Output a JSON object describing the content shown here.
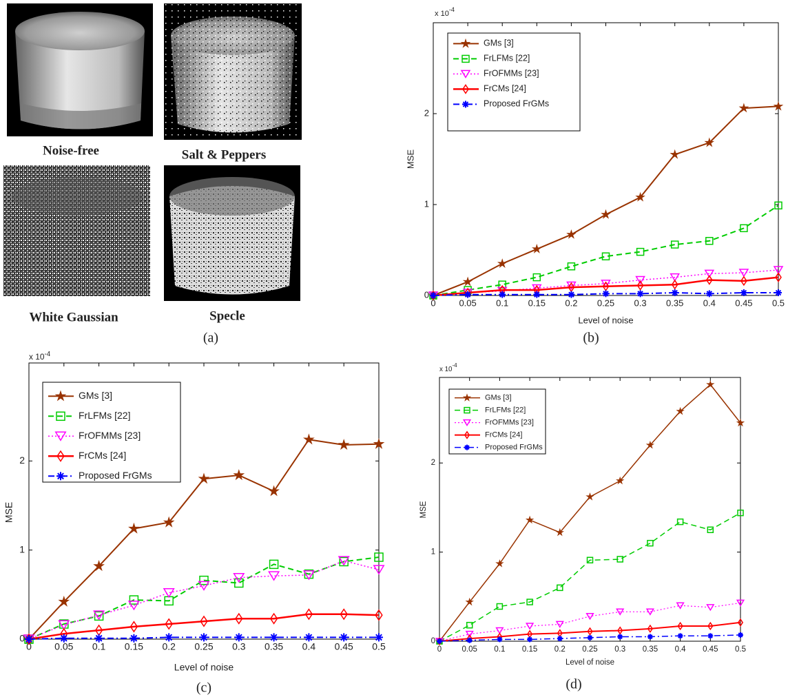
{
  "panel_a": {
    "labels": [
      "Noise-free",
      "Salt & Peppers",
      "White Gaussian",
      "Specle"
    ],
    "caption": "(a)"
  },
  "chart_data": [
    {
      "type": "line",
      "caption": "(b)",
      "x_label": "Level of noise",
      "y_label": "MSE",
      "multiplier": "x 10",
      "multiplier_exp": "-4",
      "x": [
        0,
        0.05,
        0.1,
        0.15,
        0.2,
        0.25,
        0.3,
        0.35,
        0.4,
        0.45,
        0.5
      ],
      "xlim": [
        0,
        0.5
      ],
      "xticks": [
        0,
        0.05,
        0.1,
        0.15,
        0.2,
        0.25,
        0.3,
        0.35,
        0.4,
        0.45,
        0.5
      ],
      "ylim": [
        0,
        3
      ],
      "yticks": [
        0,
        1,
        2
      ],
      "legend": "upper left",
      "series": [
        {
          "name": "GMs [3]",
          "color": "#993300",
          "marker": "star",
          "line_style": "solid",
          "line_width": 2,
          "values": [
            0,
            0.15,
            0.35,
            0.51,
            0.67,
            0.89,
            1.08,
            1.55,
            1.68,
            2.06,
            2.08
          ]
        },
        {
          "name": "FrLFMs [22]",
          "color": "#00cc00",
          "marker": "square",
          "line_style": "dashed",
          "line_width": 2,
          "values": [
            0,
            0.06,
            0.12,
            0.2,
            0.32,
            0.43,
            0.48,
            0.56,
            0.6,
            0.74,
            0.99
          ]
        },
        {
          "name": "FrOFMMs [23]",
          "color": "#ff00ff",
          "marker": "triangle-down",
          "line_style": "dotted",
          "line_width": 1.5,
          "values": [
            0,
            0.03,
            0.05,
            0.08,
            0.11,
            0.13,
            0.17,
            0.2,
            0.24,
            0.25,
            0.28
          ]
        },
        {
          "name": "FrCMs [24]",
          "color": "#ff0000",
          "marker": "diamond",
          "line_style": "solid",
          "line_width": 2.5,
          "values": [
            0,
            0.03,
            0.06,
            0.06,
            0.09,
            0.1,
            0.11,
            0.12,
            0.17,
            0.16,
            0.2
          ]
        },
        {
          "name": "Proposed FrGMs",
          "color": "#0000ff",
          "marker": "asterisk",
          "line_style": "dashdot",
          "line_width": 2,
          "values": [
            0,
            0.01,
            0.01,
            0.01,
            0.01,
            0.02,
            0.02,
            0.03,
            0.02,
            0.03,
            0.03
          ]
        }
      ]
    },
    {
      "type": "line",
      "caption": "(c)",
      "x_label": "Level of noise",
      "y_label": "MSE",
      "multiplier": "x 10",
      "multiplier_exp": "-4",
      "x": [
        0,
        0.05,
        0.1,
        0.15,
        0.2,
        0.25,
        0.3,
        0.35,
        0.4,
        0.45,
        0.5
      ],
      "xlim": [
        0,
        0.5
      ],
      "xticks": [
        0,
        0.05,
        0.1,
        0.15,
        0.2,
        0.25,
        0.3,
        0.35,
        0.4,
        0.45,
        0.5
      ],
      "ylim": [
        0,
        3.1
      ],
      "yticks": [
        0,
        1,
        2
      ],
      "legend": "upper left",
      "series": [
        {
          "name": "GMs [3]",
          "color": "#993300",
          "marker": "star",
          "line_style": "solid",
          "line_width": 2,
          "values": [
            0,
            0.42,
            0.82,
            1.24,
            1.31,
            1.8,
            1.84,
            1.66,
            2.24,
            2.18,
            2.19
          ]
        },
        {
          "name": "FrLFMs [22]",
          "color": "#00cc00",
          "marker": "square",
          "line_style": "dashed",
          "line_width": 2,
          "values": [
            0,
            0.17,
            0.26,
            0.44,
            0.43,
            0.66,
            0.63,
            0.84,
            0.73,
            0.87,
            0.92
          ]
        },
        {
          "name": "FrOFMMs [23]",
          "color": "#ff00ff",
          "marker": "triangle-down",
          "line_style": "dotted",
          "line_width": 1.5,
          "values": [
            0,
            0.16,
            0.27,
            0.38,
            0.52,
            0.6,
            0.69,
            0.71,
            0.72,
            0.88,
            0.78
          ]
        },
        {
          "name": "FrCMs [24]",
          "color": "#ff0000",
          "marker": "diamond",
          "line_style": "solid",
          "line_width": 2.5,
          "values": [
            0,
            0.06,
            0.1,
            0.14,
            0.17,
            0.2,
            0.23,
            0.23,
            0.28,
            0.28,
            0.27
          ]
        },
        {
          "name": "Proposed FrGMs",
          "color": "#0000ff",
          "marker": "asterisk",
          "line_style": "dashdot",
          "line_width": 2,
          "values": [
            0,
            0.01,
            0.01,
            0.01,
            0.02,
            0.02,
            0.02,
            0.02,
            0.02,
            0.02,
            0.02
          ]
        }
      ]
    },
    {
      "type": "line",
      "caption": "(d)",
      "x_label": "Level of noise",
      "y_label": "MSE",
      "multiplier": "x 10",
      "multiplier_exp": "-4",
      "x": [
        0,
        0.05,
        0.1,
        0.15,
        0.2,
        0.25,
        0.3,
        0.35,
        0.4,
        0.45,
        0.5
      ],
      "xlim": [
        0,
        0.5
      ],
      "xticks": [
        0,
        0.05,
        0.1,
        0.15,
        0.2,
        0.25,
        0.3,
        0.35,
        0.4,
        0.45,
        0.5
      ],
      "ylim": [
        0,
        2.96
      ],
      "yticks": [
        0,
        1,
        2
      ],
      "legend": "upper left",
      "series": [
        {
          "name": "GMs [3]",
          "color": "#993300",
          "marker": "star",
          "line_style": "solid",
          "line_width": 1.5,
          "values": [
            0,
            0.44,
            0.87,
            1.36,
            1.22,
            1.62,
            1.8,
            2.2,
            2.58,
            2.88,
            2.45
          ]
        },
        {
          "name": "FrLFMs [22]",
          "color": "#00cc00",
          "marker": "square",
          "line_style": "dashed",
          "line_width": 1.5,
          "values": [
            0,
            0.18,
            0.39,
            0.44,
            0.6,
            0.91,
            0.92,
            1.1,
            1.34,
            1.25,
            1.44
          ]
        },
        {
          "name": "FrOFMMs [23]",
          "color": "#ff00ff",
          "marker": "triangle-down",
          "line_style": "dotted",
          "line_width": 1.2,
          "values": [
            0,
            0.08,
            0.12,
            0.17,
            0.19,
            0.28,
            0.33,
            0.33,
            0.4,
            0.38,
            0.43
          ]
        },
        {
          "name": "FrCMs [24]",
          "color": "#ff0000",
          "marker": "diamond",
          "line_style": "solid",
          "line_width": 2,
          "values": [
            0,
            0.03,
            0.05,
            0.08,
            0.09,
            0.11,
            0.12,
            0.14,
            0.17,
            0.17,
            0.21
          ]
        },
        {
          "name": "Proposed FrGMs",
          "color": "#0000ff",
          "marker": "asterisk",
          "line_style": "dashdot",
          "line_width": 1.5,
          "values": [
            0,
            0.01,
            0.02,
            0.02,
            0.03,
            0.04,
            0.05,
            0.05,
            0.06,
            0.06,
            0.07
          ]
        }
      ]
    }
  ]
}
